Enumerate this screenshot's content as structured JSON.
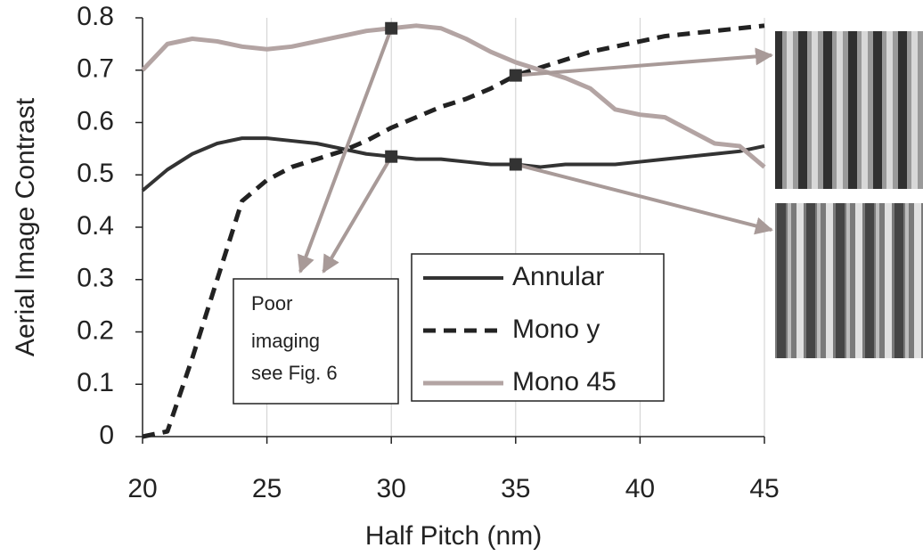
{
  "chart_data": {
    "type": "line",
    "x": [
      20,
      21,
      22,
      23,
      24,
      25,
      26,
      27,
      28,
      29,
      30,
      31,
      32,
      33,
      34,
      35,
      36,
      37,
      38,
      39,
      40,
      41,
      42,
      43,
      44,
      45
    ],
    "series": [
      {
        "name": "Annular",
        "color": "#333333",
        "values": [
          0.47,
          0.51,
          0.54,
          0.56,
          0.57,
          0.57,
          0.565,
          0.56,
          0.55,
          0.54,
          0.535,
          0.53,
          0.53,
          0.525,
          0.52,
          0.52,
          0.515,
          0.52,
          0.52,
          0.52,
          0.525,
          0.53,
          0.535,
          0.54,
          0.545,
          0.555
        ]
      },
      {
        "name": "Mono y",
        "color": "#222222",
        "values": [
          0,
          0.01,
          0.15,
          0.3,
          0.45,
          0.49,
          0.515,
          0.53,
          0.545,
          0.565,
          0.59,
          0.61,
          0.63,
          0.645,
          0.665,
          0.69,
          0.705,
          0.72,
          0.735,
          0.745,
          0.755,
          0.765,
          0.77,
          0.775,
          0.78,
          0.785
        ]
      },
      {
        "name": "Mono 45",
        "color": "#b3a4a3",
        "values": [
          0.7,
          0.75,
          0.76,
          0.755,
          0.745,
          0.74,
          0.745,
          0.755,
          0.765,
          0.775,
          0.78,
          0.785,
          0.78,
          0.76,
          0.735,
          0.715,
          0.7,
          0.685,
          0.665,
          0.625,
          0.615,
          0.61,
          0.585,
          0.56,
          0.555,
          0.515
        ]
      }
    ],
    "xlabel": "Half Pitch (nm)",
    "ylabel": "Aerial Image Contrast",
    "xlim": [
      20,
      45
    ],
    "xticks": [
      20,
      25,
      30,
      35,
      40,
      45
    ],
    "ylim": [
      0,
      0.8
    ],
    "yticks": [
      0,
      0.1,
      0.2,
      0.3,
      0.4,
      0.5,
      0.6,
      0.7,
      0.8
    ],
    "grid": true,
    "annotation": [
      "Poor",
      "imaging",
      "see Fig. 6"
    ]
  }
}
